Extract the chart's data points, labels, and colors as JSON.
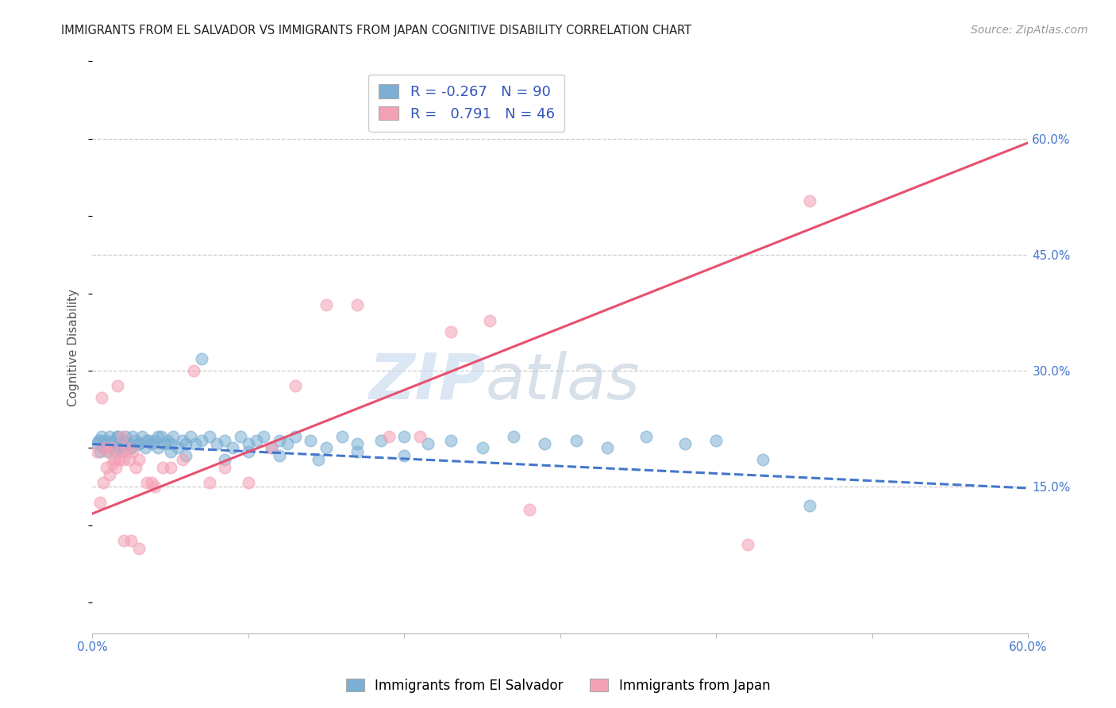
{
  "title": "IMMIGRANTS FROM EL SALVADOR VS IMMIGRANTS FROM JAPAN COGNITIVE DISABILITY CORRELATION CHART",
  "source": "Source: ZipAtlas.com",
  "ylabel": "Cognitive Disability",
  "xlim": [
    0.0,
    0.6
  ],
  "ylim": [
    -0.04,
    0.7
  ],
  "yticks": [
    0.15,
    0.3,
    0.45,
    0.6
  ],
  "ytick_labels": [
    "15.0%",
    "30.0%",
    "45.0%",
    "60.0%"
  ],
  "xticks": [
    0.0,
    0.1,
    0.2,
    0.3,
    0.4,
    0.5,
    0.6
  ],
  "xtick_labels": [
    "0.0%",
    "",
    "",
    "",
    "",
    "",
    "60.0%"
  ],
  "blue_R": -0.267,
  "blue_N": 90,
  "pink_R": 0.791,
  "pink_N": 46,
  "blue_color": "#7BAFD4",
  "pink_color": "#F4A0B5",
  "blue_line_color": "#4477CC",
  "pink_line_color": "#E85070",
  "legend_label_blue": "Immigrants from El Salvador",
  "legend_label_pink": "Immigrants from Japan",
  "watermark_zip": "ZIP",
  "watermark_atlas": "atlas",
  "background_color": "#ffffff",
  "grid_color": "#cccccc",
  "blue_line_start_x": 0.0,
  "blue_line_start_y": 0.205,
  "blue_line_end_x": 0.6,
  "blue_line_end_y": 0.148,
  "pink_line_start_x": 0.0,
  "pink_line_start_y": 0.115,
  "pink_line_end_x": 0.6,
  "pink_line_end_y": 0.595,
  "blue_scatter_x": [
    0.003,
    0.004,
    0.005,
    0.006,
    0.007,
    0.008,
    0.009,
    0.01,
    0.011,
    0.012,
    0.013,
    0.014,
    0.015,
    0.016,
    0.017,
    0.018,
    0.019,
    0.02,
    0.021,
    0.022,
    0.024,
    0.025,
    0.026,
    0.028,
    0.03,
    0.032,
    0.034,
    0.036,
    0.038,
    0.04,
    0.042,
    0.044,
    0.046,
    0.048,
    0.05,
    0.052,
    0.055,
    0.058,
    0.06,
    0.063,
    0.066,
    0.07,
    0.075,
    0.08,
    0.085,
    0.09,
    0.095,
    0.1,
    0.105,
    0.11,
    0.115,
    0.12,
    0.125,
    0.13,
    0.14,
    0.15,
    0.16,
    0.17,
    0.185,
    0.2,
    0.215,
    0.23,
    0.25,
    0.27,
    0.29,
    0.31,
    0.33,
    0.355,
    0.38,
    0.4,
    0.005,
    0.008,
    0.012,
    0.016,
    0.02,
    0.025,
    0.03,
    0.035,
    0.042,
    0.05,
    0.06,
    0.07,
    0.085,
    0.1,
    0.12,
    0.145,
    0.17,
    0.2,
    0.43,
    0.46
  ],
  "blue_scatter_y": [
    0.205,
    0.21,
    0.195,
    0.215,
    0.2,
    0.21,
    0.205,
    0.195,
    0.215,
    0.2,
    0.21,
    0.205,
    0.195,
    0.215,
    0.2,
    0.205,
    0.21,
    0.195,
    0.215,
    0.2,
    0.205,
    0.2,
    0.215,
    0.21,
    0.205,
    0.215,
    0.2,
    0.21,
    0.205,
    0.21,
    0.2,
    0.215,
    0.205,
    0.21,
    0.205,
    0.215,
    0.2,
    0.21,
    0.205,
    0.215,
    0.205,
    0.21,
    0.215,
    0.205,
    0.21,
    0.2,
    0.215,
    0.205,
    0.21,
    0.215,
    0.2,
    0.21,
    0.205,
    0.215,
    0.21,
    0.2,
    0.215,
    0.205,
    0.21,
    0.215,
    0.205,
    0.21,
    0.2,
    0.215,
    0.205,
    0.21,
    0.2,
    0.215,
    0.205,
    0.21,
    0.21,
    0.2,
    0.205,
    0.215,
    0.21,
    0.2,
    0.205,
    0.21,
    0.215,
    0.195,
    0.19,
    0.315,
    0.185,
    0.195,
    0.19,
    0.185,
    0.195,
    0.19,
    0.185,
    0.125
  ],
  "pink_scatter_x": [
    0.003,
    0.005,
    0.006,
    0.007,
    0.008,
    0.009,
    0.01,
    0.011,
    0.012,
    0.013,
    0.014,
    0.015,
    0.016,
    0.017,
    0.018,
    0.019,
    0.02,
    0.022,
    0.024,
    0.026,
    0.028,
    0.03,
    0.035,
    0.04,
    0.045,
    0.05,
    0.058,
    0.065,
    0.075,
    0.085,
    0.1,
    0.115,
    0.13,
    0.15,
    0.17,
    0.19,
    0.21,
    0.23,
    0.255,
    0.28,
    0.02,
    0.025,
    0.03,
    0.038,
    0.46,
    0.42
  ],
  "pink_scatter_y": [
    0.195,
    0.13,
    0.265,
    0.155,
    0.2,
    0.175,
    0.195,
    0.165,
    0.2,
    0.18,
    0.185,
    0.175,
    0.28,
    0.185,
    0.195,
    0.215,
    0.185,
    0.2,
    0.185,
    0.195,
    0.175,
    0.185,
    0.155,
    0.15,
    0.175,
    0.175,
    0.185,
    0.3,
    0.155,
    0.175,
    0.155,
    0.2,
    0.28,
    0.385,
    0.385,
    0.215,
    0.215,
    0.35,
    0.365,
    0.12,
    0.08,
    0.08,
    0.07,
    0.155,
    0.52,
    0.075
  ]
}
